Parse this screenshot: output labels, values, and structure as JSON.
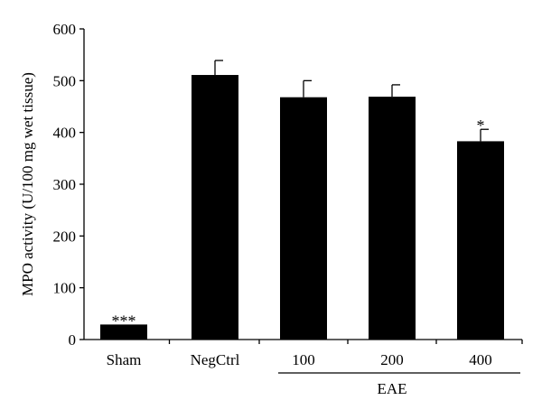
{
  "chart_data": {
    "type": "bar",
    "title": "",
    "ylabel": "MPO activity (U/100 mg wet tissue)",
    "xlabel": "",
    "ylim": [
      0,
      600
    ],
    "yticks": [
      0,
      100,
      200,
      300,
      400,
      500,
      600
    ],
    "categories": [
      "Sham",
      "NegCtrl",
      "100",
      "200",
      "400"
    ],
    "values": [
      29,
      511,
      468,
      469,
      383
    ],
    "errors": [
      0,
      28,
      32,
      23,
      23
    ],
    "significance": [
      "***",
      "",
      "",
      "",
      "*"
    ],
    "group_label": "EAE",
    "group_members": [
      "100",
      "200",
      "400"
    ],
    "bar_color": "#000000",
    "grid": false,
    "legend": "none"
  }
}
